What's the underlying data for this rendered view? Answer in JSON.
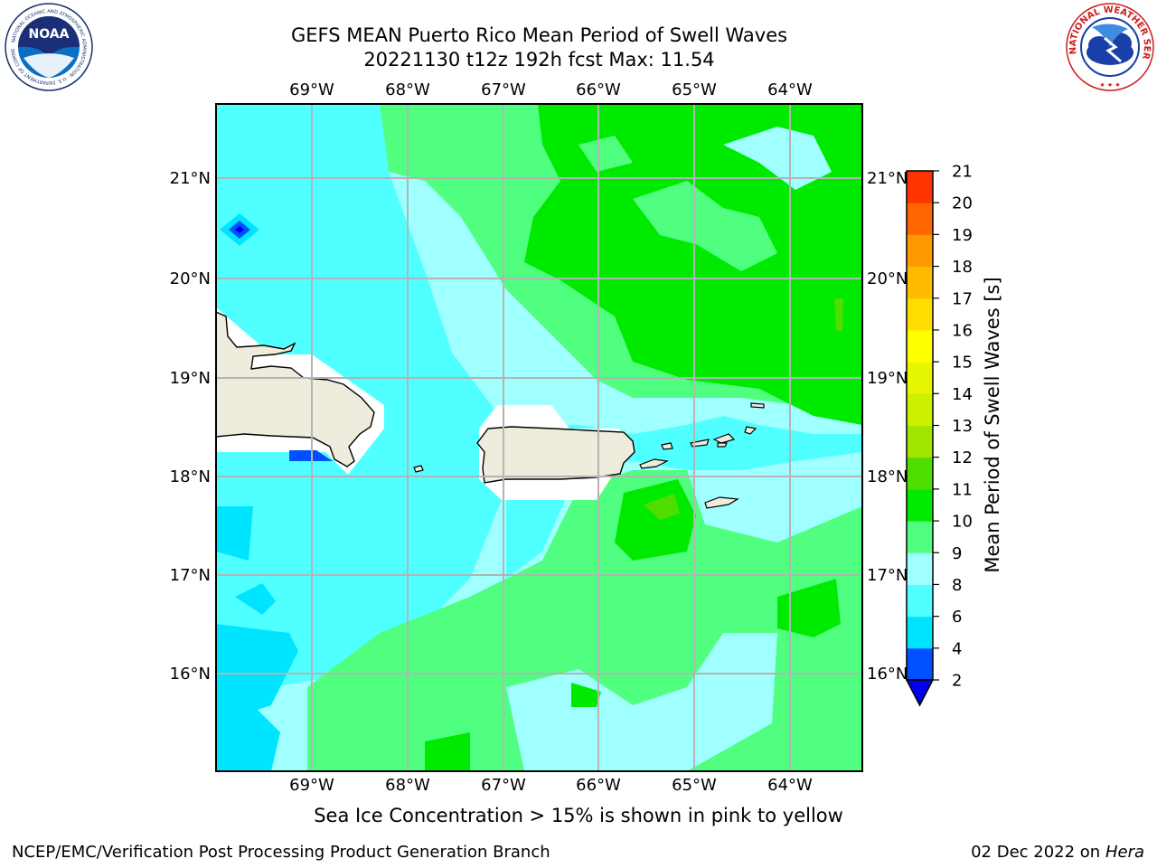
{
  "title": {
    "line1": "GEFS MEAN Puerto Rico Mean Period of Swell Waves",
    "line2": "20221130 t12z 192h fcst   Max: 11.54"
  },
  "note": "Sea Ice Concentration > 15% is shown in pink to yellow",
  "footer": {
    "credit": "NCEP/EMC/Verification Post Processing Product Generation Branch",
    "date": "02 Dec 2022 on",
    "host": "Hera"
  },
  "logos": {
    "noaa": {
      "text": "NOAA",
      "ring_text": "NATIONAL OCEANIC AND ATMOSPHERIC ADMINISTRATION · U.S. DEPARTMENT OF COMMERCE"
    },
    "nws": {
      "ring_text": "NATIONAL WEATHER SERVICE"
    }
  },
  "map": {
    "lon_labels": [
      "69°W",
      "68°W",
      "67°W",
      "66°W",
      "65°W",
      "64°W"
    ],
    "lat_labels": [
      "16°N",
      "17°N",
      "18°N",
      "19°N",
      "20°N",
      "21°N"
    ]
  },
  "colorbar": {
    "label": "Mean Period of Swell Waves [s]",
    "ticks": [
      "2",
      "4",
      "6",
      "8",
      "9",
      "10",
      "11",
      "12",
      "13",
      "14",
      "15",
      "16",
      "17",
      "18",
      "19",
      "20",
      "21"
    ],
    "colors": [
      "#0050ff",
      "#00e5ff",
      "#50ffff",
      "#a0ffff",
      "#50ff80",
      "#00ea00",
      "#50dd00",
      "#a0e600",
      "#ccf000",
      "#e6f500",
      "#ffff00",
      "#ffdd00",
      "#ffbb00",
      "#ff9900",
      "#ff6600",
      "#ff3300",
      "#ff0000"
    ],
    "extend_color": "#0000ee"
  },
  "colors": {
    "land": "#eeecdc",
    "grid": "#b4b4b4",
    "coast": "#000000"
  }
}
